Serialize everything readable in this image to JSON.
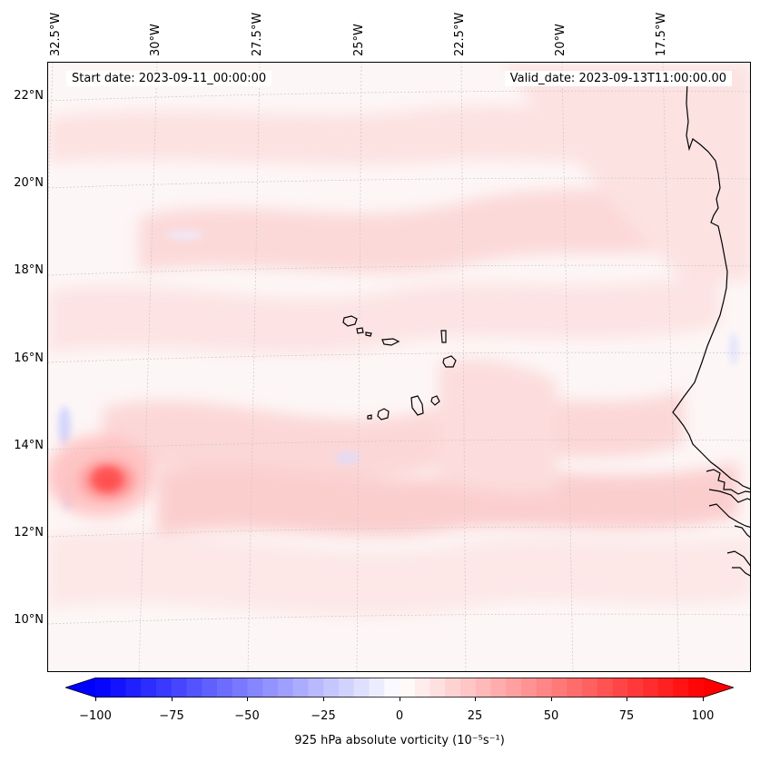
{
  "map": {
    "start_date": "Start date: 2023-09-11_00:00:00",
    "valid_date": "Valid_date: 2023-09-13T11:00:00.00",
    "lat_labels": [
      "22°N",
      "20°N",
      "18°N",
      "16°N",
      "14°N",
      "12°N",
      "10°N"
    ],
    "lon_labels": [
      "32.5°W",
      "30°W",
      "27.5°W",
      "25°W",
      "22.5°W",
      "20°W",
      "17.5°W"
    ],
    "colors": {
      "background_tint": "#fdf6f6",
      "coastline": "#000000",
      "gridline": "#c8c8c8",
      "max_positive": "#ff0000",
      "max_negative": "#0000ff"
    },
    "features": {
      "vortex": "positive vorticity maximum near 33°W, 13.2°N",
      "coastline": "West African coast (Mauritania, Senegal, Gambia)",
      "islands": "Cape Verde islands"
    }
  },
  "colorbar": {
    "label": "925 hPa absolute vorticity (10⁻⁵s⁻¹)",
    "ticks": [
      "−100",
      "−75",
      "−50",
      "−25",
      "0",
      "25",
      "50",
      "75",
      "100"
    ],
    "min": -100,
    "max": 100,
    "step": 5,
    "extend": "both"
  }
}
